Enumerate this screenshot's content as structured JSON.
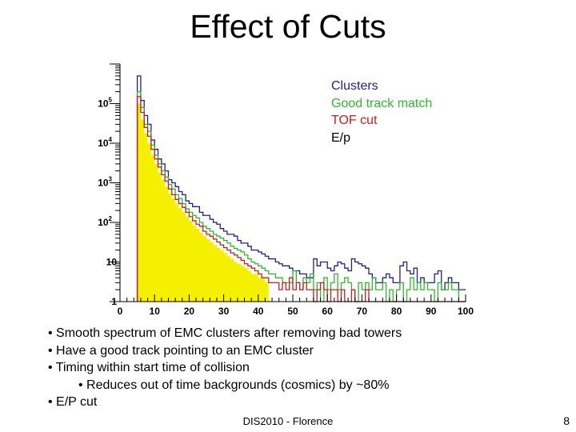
{
  "slide": {
    "title": "Effect of Cuts",
    "bullets": [
      "• Smooth spectrum of EMC clusters after removing bad towers",
      "• Have a good track pointing to an EMC cluster",
      "• Timing within start time of collision",
      "• Reduces out of time backgrounds (cosmics) by ~80%",
      "• E/P cut"
    ],
    "footer": "DIS2010 - Florence",
    "page_number": "8"
  },
  "chart_data": {
    "type": "line",
    "title": "",
    "xlabel": "",
    "ylabel": "",
    "xlim": [
      0,
      100
    ],
    "ylim": [
      1,
      1000000
    ],
    "yscale": "log",
    "grid": false,
    "x_ticks": [
      "0",
      "10",
      "20",
      "30",
      "40",
      "50",
      "60",
      "70",
      "80",
      "90",
      "100"
    ],
    "y_ticks": [
      {
        "label_base": "1",
        "label_exp": ""
      },
      {
        "label_base": "10",
        "label_exp": ""
      },
      {
        "label_base": "10",
        "label_exp": "2"
      },
      {
        "label_base": "10",
        "label_exp": "3"
      },
      {
        "label_base": "10",
        "label_exp": "4"
      },
      {
        "label_base": "10",
        "label_exp": "5"
      }
    ],
    "legend_placement": "top-right",
    "x_bin_edges": [
      5,
      6,
      7,
      8,
      9,
      10,
      11,
      12,
      13,
      14,
      15,
      16,
      17,
      18,
      19,
      20,
      21,
      22,
      23,
      24,
      25,
      26,
      27,
      28,
      29,
      30,
      31,
      32,
      33,
      34,
      35,
      36,
      37,
      38,
      39,
      40,
      41,
      42,
      43,
      44,
      45,
      46,
      47,
      48,
      49,
      50,
      51,
      52,
      53,
      54,
      55,
      56,
      57,
      58,
      59,
      60,
      61,
      62,
      63,
      64,
      65,
      66,
      67,
      68,
      69,
      70,
      71,
      72,
      73,
      74,
      75,
      76,
      77,
      78,
      79,
      80,
      81,
      82,
      83,
      84,
      85,
      86,
      87,
      88,
      89,
      90,
      91,
      92,
      93,
      94,
      95,
      96,
      97,
      98,
      99,
      100
    ],
    "series": [
      {
        "name": "Clusters",
        "color": "#1f1f8f",
        "fill": false,
        "values": [
          500000,
          120000,
          50000,
          30000,
          12000,
          7000,
          4000,
          3000,
          2000,
          1200,
          1000,
          800,
          600,
          500,
          350,
          300,
          250,
          250,
          180,
          150,
          150,
          120,
          100,
          90,
          70,
          60,
          50,
          50,
          45,
          35,
          30,
          30,
          25,
          20,
          20,
          18,
          16,
          14,
          12,
          12,
          10,
          9,
          8,
          8,
          7,
          6,
          6,
          5,
          5,
          4,
          4,
          12,
          8,
          10,
          10,
          7,
          6,
          8,
          10,
          9,
          7,
          6,
          12,
          10,
          9,
          8,
          7,
          5,
          4,
          3,
          3,
          4,
          5,
          4,
          3,
          3,
          8,
          10,
          6,
          5,
          7,
          3,
          4,
          3,
          3,
          3,
          5,
          6,
          2,
          3,
          4,
          3,
          3,
          2,
          2
        ]
      },
      {
        "name": "Good track match",
        "color": "#2db82d",
        "fill": false,
        "values": [
          200000,
          80000,
          30000,
          20000,
          9000,
          5000,
          3000,
          2000,
          1400,
          900,
          700,
          500,
          400,
          300,
          220,
          180,
          150,
          130,
          100,
          80,
          70,
          60,
          50,
          45,
          40,
          35,
          30,
          25,
          22,
          20,
          18,
          15,
          12,
          10,
          9,
          8,
          7,
          6,
          5,
          5,
          4,
          4,
          3,
          3,
          3,
          6,
          3,
          2,
          4,
          3,
          5,
          2,
          3,
          1,
          4,
          2,
          3,
          5,
          2,
          3,
          4,
          3,
          2,
          1,
          3,
          2,
          3,
          2,
          4,
          2,
          2,
          3,
          1,
          2,
          1,
          2,
          3,
          1,
          2,
          4,
          2,
          3,
          2,
          3,
          2,
          2,
          1,
          3,
          2,
          2,
          3,
          2,
          2,
          1,
          1
        ]
      },
      {
        "name": "TOF cut",
        "color": "#c81e1e",
        "fill": false,
        "values": [
          150000,
          60000,
          25000,
          15000,
          7000,
          4000,
          2500,
          1600,
          1100,
          700,
          500,
          380,
          300,
          240,
          180,
          140,
          110,
          90,
          80,
          60,
          50,
          45,
          38,
          32,
          27,
          23,
          20,
          17,
          15,
          13,
          11,
          9,
          8,
          7,
          6,
          5,
          4,
          4,
          3,
          3,
          3,
          2,
          3,
          2,
          4,
          2,
          3,
          2,
          3,
          2,
          2,
          1,
          2,
          3,
          2,
          1,
          2,
          2,
          1,
          2,
          1,
          1,
          2,
          1,
          1,
          1,
          2,
          1,
          1,
          1,
          1,
          1,
          1,
          1,
          1,
          1,
          1,
          1,
          1,
          1,
          1,
          1,
          1,
          1,
          1,
          1,
          1,
          1,
          1,
          1,
          1,
          1,
          1,
          1,
          1
        ]
      },
      {
        "name": "E/p",
        "color": "#f5f000",
        "fill": true,
        "values": [
          100000,
          40000,
          18000,
          10000,
          5000,
          3000,
          1800,
          1200,
          800,
          550,
          400,
          300,
          230,
          180,
          140,
          110,
          85,
          70,
          55,
          45,
          38,
          32,
          27,
          23,
          20,
          17,
          14,
          12,
          10,
          9,
          8,
          7,
          6,
          5,
          5,
          4,
          4,
          3,
          0,
          0,
          0,
          0,
          0,
          0,
          0,
          0,
          0,
          0,
          0,
          0,
          0,
          0,
          0,
          0,
          0,
          0,
          0,
          0,
          0,
          0,
          0,
          0,
          0,
          0,
          0,
          0,
          0,
          0,
          0,
          0,
          0,
          0,
          0,
          0,
          0,
          0,
          0,
          0,
          0,
          0,
          0,
          0,
          0,
          0,
          0,
          0,
          0,
          0,
          0,
          0,
          0,
          0,
          0,
          0,
          0
        ]
      }
    ]
  }
}
